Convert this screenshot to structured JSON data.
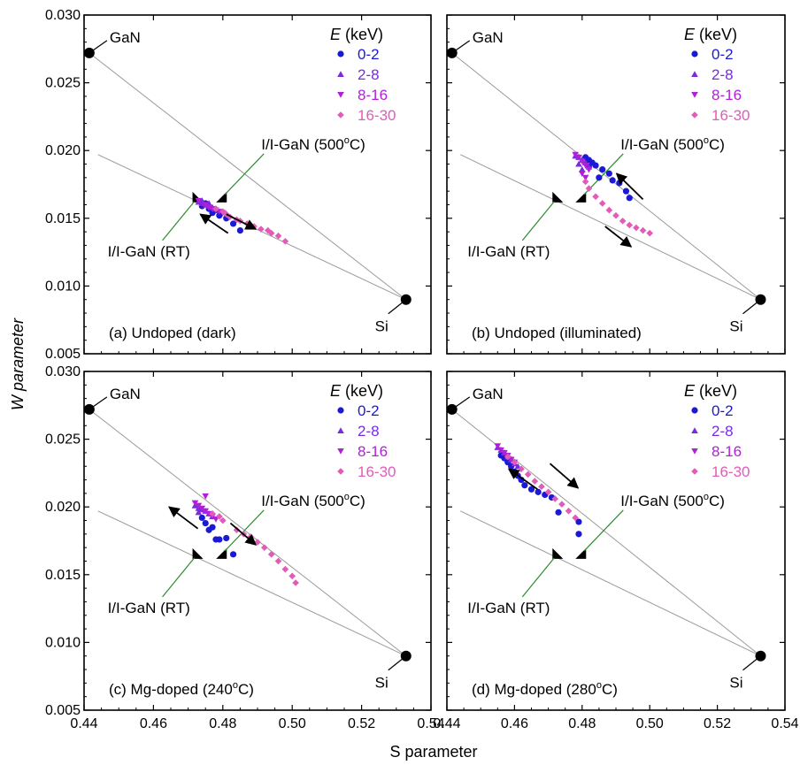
{
  "figure": {
    "ylabel": "W parameter",
    "xlabel": "S parameter"
  },
  "legend": {
    "title_var": "E",
    "title_unit": " (keV)"
  },
  "colors": {
    "s0_2": "#1a1ad6",
    "s2_8": "#7a2be0",
    "s8_16": "#b020d8",
    "s16_30": "#e05cb8",
    "reference_lines": "#9a9a9a",
    "callout_lines": "#2e8b2e",
    "markers": "#000000"
  },
  "chart_data": [
    {
      "type": "scatter",
      "panel_label": "(a) Undoped (dark)",
      "xlim": [
        0.44,
        0.54
      ],
      "ylim": [
        0.005,
        0.03
      ],
      "xticks": [
        "0.44",
        "0.46",
        "0.48",
        "0.50",
        "0.52",
        "0.54"
      ],
      "yticks": [
        "0.005",
        "0.010",
        "0.015",
        "0.020",
        "0.025",
        "0.030"
      ],
      "reference_points": [
        {
          "label": "GaN",
          "x": 0.4415,
          "y": 0.0272
        },
        {
          "label": "Si",
          "x": 0.5328,
          "y": 0.009
        }
      ],
      "reference_lines": [
        {
          "from": [
            0.4415,
            0.0272
          ],
          "to": [
            0.5328,
            0.009
          ]
        },
        {
          "from": [
            0.444,
            0.0197
          ],
          "to": [
            0.5328,
            0.009
          ]
        }
      ],
      "callouts": [
        {
          "label": "I/I-GaN (500°C)",
          "x": 0.4796,
          "y": 0.0165
        },
        {
          "label": "I/I-GaN (RT)",
          "x": 0.4728,
          "y": 0.0165
        }
      ],
      "arrows": [
        {
          "from": [
            0.481,
            0.0153
          ],
          "to": [
            0.4895,
            0.0142
          ]
        },
        {
          "from": [
            0.4815,
            0.0139
          ],
          "to": [
            0.4735,
            0.0153
          ]
        }
      ],
      "series": [
        {
          "name": "0-2",
          "marker": "circle",
          "x": [
            0.474,
            0.476,
            0.478,
            0.477,
            0.479,
            0.481,
            0.483,
            0.485,
            0.475
          ],
          "y": [
            0.0159,
            0.0157,
            0.0156,
            0.0154,
            0.0152,
            0.015,
            0.0146,
            0.0141,
            0.0161
          ]
        },
        {
          "name": "2-8",
          "marker": "triangle-up",
          "x": [
            0.473,
            0.474,
            0.475,
            0.476,
            0.477,
            0.478,
            0.474,
            0.476
          ],
          "y": [
            0.0162,
            0.0161,
            0.016,
            0.0159,
            0.0158,
            0.0157,
            0.0163,
            0.0161
          ]
        },
        {
          "name": "8-16",
          "marker": "triangle-down",
          "x": [
            0.473,
            0.475,
            0.476,
            0.477,
            0.478,
            0.479,
            0.48
          ],
          "y": [
            0.0163,
            0.016,
            0.0158,
            0.0157,
            0.0156,
            0.0155,
            0.0154
          ]
        },
        {
          "name": "16-30",
          "marker": "diamond",
          "x": [
            0.478,
            0.48,
            0.481,
            0.482,
            0.484,
            0.485,
            0.487,
            0.488,
            0.489,
            0.491,
            0.493,
            0.494,
            0.496,
            0.498
          ],
          "y": [
            0.0157,
            0.0155,
            0.0153,
            0.0151,
            0.0149,
            0.0148,
            0.0146,
            0.0145,
            0.0144,
            0.0142,
            0.0141,
            0.0139,
            0.0137,
            0.0133
          ]
        }
      ]
    },
    {
      "type": "scatter",
      "panel_label": "(b) Undoped (illuminated)",
      "xlim": [
        0.44,
        0.54
      ],
      "ylim": [
        0.005,
        0.03
      ],
      "xticks": [
        "0.44",
        "0.46",
        "0.48",
        "0.50",
        "0.52",
        "0.54"
      ],
      "yticks": [
        "0.005",
        "0.010",
        "0.015",
        "0.020",
        "0.025",
        "0.030"
      ],
      "reference_points": [
        {
          "label": "GaN",
          "x": 0.4415,
          "y": 0.0272
        },
        {
          "label": "Si",
          "x": 0.5328,
          "y": 0.009
        }
      ],
      "reference_lines": [
        {
          "from": [
            0.4415,
            0.0272
          ],
          "to": [
            0.5328,
            0.009
          ]
        },
        {
          "from": [
            0.444,
            0.0197
          ],
          "to": [
            0.5328,
            0.009
          ]
        }
      ],
      "callouts": [
        {
          "label": "I/I-GaN (500°C)",
          "x": 0.4796,
          "y": 0.0165
        },
        {
          "label": "I/I-GaN (RT)",
          "x": 0.4728,
          "y": 0.0165
        }
      ],
      "arrows": [
        {
          "from": [
            0.498,
            0.0164
          ],
          "to": [
            0.4902,
            0.0183
          ]
        },
        {
          "from": [
            0.4868,
            0.0144
          ],
          "to": [
            0.4945,
            0.0129
          ]
        }
      ],
      "series": [
        {
          "name": "0-2",
          "marker": "circle",
          "x": [
            0.481,
            0.482,
            0.483,
            0.484,
            0.486,
            0.488,
            0.489,
            0.491,
            0.493,
            0.494,
            0.485,
            0.482
          ],
          "y": [
            0.0195,
            0.0193,
            0.0191,
            0.0189,
            0.0186,
            0.0183,
            0.0178,
            0.0176,
            0.017,
            0.0165,
            0.018,
            0.0188
          ]
        },
        {
          "name": "2-8",
          "marker": "triangle-up",
          "x": [
            0.478,
            0.479,
            0.48,
            0.481,
            0.482,
            0.479,
            0.48
          ],
          "y": [
            0.0196,
            0.0195,
            0.0193,
            0.0191,
            0.0188,
            0.019,
            0.0186
          ]
        },
        {
          "name": "8-16",
          "marker": "triangle-down",
          "x": [
            0.478,
            0.479,
            0.48,
            0.481,
            0.482,
            0.48,
            0.481
          ],
          "y": [
            0.0197,
            0.0195,
            0.0192,
            0.0189,
            0.0186,
            0.0183,
            0.018
          ]
        },
        {
          "name": "16-30",
          "marker": "diamond",
          "x": [
            0.481,
            0.482,
            0.484,
            0.486,
            0.488,
            0.49,
            0.492,
            0.494,
            0.496,
            0.498,
            0.5
          ],
          "y": [
            0.0177,
            0.0172,
            0.0166,
            0.0161,
            0.0156,
            0.0152,
            0.0148,
            0.0145,
            0.0143,
            0.0141,
            0.0139
          ]
        }
      ]
    },
    {
      "type": "scatter",
      "panel_label": "(c) Mg-doped  (240°C)",
      "xlim": [
        0.44,
        0.54
      ],
      "ylim": [
        0.005,
        0.03
      ],
      "xticks": [
        "0.44",
        "0.46",
        "0.48",
        "0.50",
        "0.52",
        "0.54"
      ],
      "yticks": [
        "0.005",
        "0.010",
        "0.015",
        "0.020",
        "0.025",
        "0.030"
      ],
      "reference_points": [
        {
          "label": "GaN",
          "x": 0.4415,
          "y": 0.0272
        },
        {
          "label": "Si",
          "x": 0.5328,
          "y": 0.009
        }
      ],
      "reference_lines": [
        {
          "from": [
            0.4415,
            0.0272
          ],
          "to": [
            0.5328,
            0.009
          ]
        },
        {
          "from": [
            0.444,
            0.0197
          ],
          "to": [
            0.5328,
            0.009
          ]
        }
      ],
      "callouts": [
        {
          "label": "I/I-GaN (500°C)",
          "x": 0.4796,
          "y": 0.0165
        },
        {
          "label": "I/I-GaN (RT)",
          "x": 0.4728,
          "y": 0.0165
        }
      ],
      "arrows": [
        {
          "from": [
            0.4728,
            0.0184
          ],
          "to": [
            0.4645,
            0.02
          ]
        },
        {
          "from": [
            0.4822,
            0.0188
          ],
          "to": [
            0.4895,
            0.0172
          ]
        }
      ],
      "series": [
        {
          "name": "0-2",
          "marker": "circle",
          "x": [
            0.474,
            0.475,
            0.476,
            0.478,
            0.479,
            0.481,
            0.483,
            0.477
          ],
          "y": [
            0.0192,
            0.0188,
            0.0183,
            0.0176,
            0.0176,
            0.0177,
            0.0165,
            0.0185
          ]
        },
        {
          "name": "2-8",
          "marker": "triangle-up",
          "x": [
            0.472,
            0.473,
            0.474,
            0.475,
            0.476,
            0.477,
            0.473
          ],
          "y": [
            0.0201,
            0.0199,
            0.0198,
            0.0197,
            0.0195,
            0.0193,
            0.0196
          ]
        },
        {
          "name": "8-16",
          "marker": "triangle-down",
          "x": [
            0.472,
            0.473,
            0.474,
            0.475,
            0.476,
            0.477,
            0.478,
            0.475
          ],
          "y": [
            0.0203,
            0.0201,
            0.0199,
            0.0197,
            0.0195,
            0.0193,
            0.0191,
            0.0208
          ]
        },
        {
          "name": "16-30",
          "marker": "diamond",
          "x": [
            0.477,
            0.479,
            0.48,
            0.484,
            0.486,
            0.488,
            0.49,
            0.492,
            0.494,
            0.496,
            0.498,
            0.5,
            0.501
          ],
          "y": [
            0.0195,
            0.0193,
            0.019,
            0.0183,
            0.018,
            0.0178,
            0.0174,
            0.017,
            0.0165,
            0.016,
            0.0154,
            0.0149,
            0.0144
          ]
        }
      ]
    },
    {
      "type": "scatter",
      "panel_label": "(d) Mg-doped (280°C)",
      "xlim": [
        0.44,
        0.54
      ],
      "ylim": [
        0.005,
        0.03
      ],
      "xticks": [
        "0.44",
        "0.46",
        "0.48",
        "0.50",
        "0.52",
        "0.54"
      ],
      "yticks": [
        "0.005",
        "0.010",
        "0.015",
        "0.020",
        "0.025",
        "0.030"
      ],
      "reference_points": [
        {
          "label": "GaN",
          "x": 0.4415,
          "y": 0.0272
        },
        {
          "label": "Si",
          "x": 0.5328,
          "y": 0.009
        }
      ],
      "reference_lines": [
        {
          "from": [
            0.4415,
            0.0272
          ],
          "to": [
            0.5328,
            0.009
          ]
        },
        {
          "from": [
            0.444,
            0.0197
          ],
          "to": [
            0.5328,
            0.009
          ]
        }
      ],
      "callouts": [
        {
          "label": "I/I-GaN (500°C)",
          "x": 0.4796,
          "y": 0.0165
        },
        {
          "label": "I/I-GaN (RT)",
          "x": 0.4728,
          "y": 0.0165
        }
      ],
      "arrows": [
        {
          "from": [
            0.4705,
            0.0232
          ],
          "to": [
            0.4788,
            0.0214
          ]
        },
        {
          "from": [
            0.4668,
            0.0213
          ],
          "to": [
            0.4583,
            0.0228
          ]
        }
      ],
      "series": [
        {
          "name": "0-2",
          "marker": "circle",
          "x": [
            0.456,
            0.457,
            0.458,
            0.459,
            0.46,
            0.461,
            0.462,
            0.463,
            0.465,
            0.467,
            0.469,
            0.471,
            0.473,
            0.479,
            0.479
          ],
          "y": [
            0.0238,
            0.0236,
            0.0233,
            0.023,
            0.0226,
            0.0223,
            0.022,
            0.0216,
            0.0213,
            0.0211,
            0.0209,
            0.0207,
            0.0196,
            0.0189,
            0.018
          ]
        },
        {
          "name": "2-8",
          "marker": "triangle-up",
          "x": [
            0.455,
            0.456,
            0.457,
            0.458,
            0.459,
            0.46,
            0.461
          ],
          "y": [
            0.0244,
            0.0242,
            0.024,
            0.0237,
            0.0235,
            0.0232,
            0.023
          ]
        },
        {
          "name": "8-16",
          "marker": "triangle-down",
          "x": [
            0.455,
            0.456,
            0.457,
            0.458,
            0.459,
            0.46
          ],
          "y": [
            0.0245,
            0.0242,
            0.024,
            0.0238,
            0.0235,
            0.0233
          ]
        },
        {
          "name": "16-30",
          "marker": "diamond",
          "x": [
            0.458,
            0.46,
            0.462,
            0.464,
            0.466,
            0.468,
            0.47,
            0.472,
            0.474,
            0.476,
            0.478
          ],
          "y": [
            0.0237,
            0.0233,
            0.0228,
            0.0224,
            0.0219,
            0.0215,
            0.0211,
            0.0206,
            0.0202,
            0.0197,
            0.0192
          ]
        }
      ]
    }
  ]
}
